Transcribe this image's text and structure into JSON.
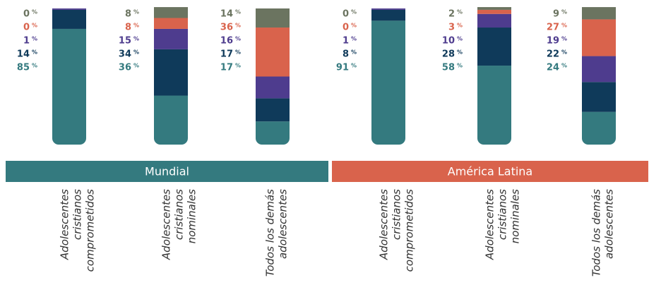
{
  "chart_data": {
    "type": "stacked-bar",
    "categories": [
      [
        "Adolescentes",
        "cristianos",
        "comprometidos"
      ],
      [
        "Adolescentes",
        "cristianos",
        "nominales"
      ],
      [
        "Todos los demás",
        "adolescentes"
      ],
      [
        "Adolescentes",
        "cristianos",
        "comprometidos"
      ],
      [
        "Adolescentes",
        "cristianos",
        "nominales"
      ],
      [
        "Todos los demás",
        "adolescentes"
      ]
    ],
    "groups": [
      {
        "name": "Mundial",
        "color": "#347a7f",
        "count": 3
      },
      {
        "name": "América Latina",
        "color": "#d9634c",
        "count": 3
      }
    ],
    "unit": "%",
    "ylim": [
      0,
      100
    ],
    "series": [
      {
        "color": "#347a7f",
        "values": [
          85,
          36,
          17,
          91,
          58,
          24
        ]
      },
      {
        "color": "#0f3a5a",
        "values": [
          14,
          34,
          17,
          8,
          28,
          22
        ]
      },
      {
        "color": "#4e3c8e",
        "values": [
          1,
          15,
          16,
          1,
          10,
          19
        ]
      },
      {
        "color": "#d9634c",
        "values": [
          0,
          8,
          36,
          0,
          3,
          27
        ]
      },
      {
        "color": "#6b7460",
        "values": [
          0,
          8,
          14,
          0,
          2,
          9
        ]
      }
    ]
  }
}
